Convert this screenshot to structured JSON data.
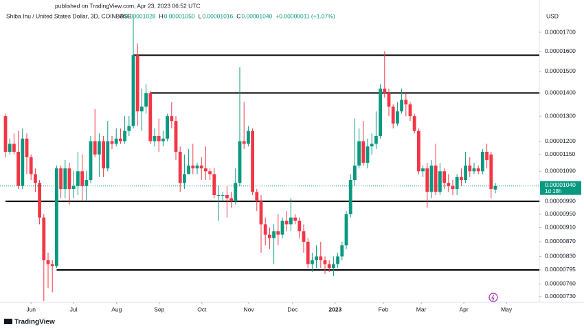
{
  "chart_data": {
    "type": "candlestick",
    "published": "published on TradingView.com, Apr 23, 2023 06:52 UTC",
    "symbol": "Shiba Inu / United States Dollar, 3D, COINBASE",
    "legend": {
      "o": "O",
      "o_value": "0.00001028",
      "h": "H",
      "h_value": "0.00001050",
      "l": "L",
      "l_value": "0.00001016",
      "c": "C",
      "c_value": "0.00001040",
      "change": "+0.00000011 (+1.07%)"
    },
    "currency": "USD",
    "brand": "TradingView",
    "up_color": "#089981",
    "down_color": "#f23645",
    "log_scale": true,
    "ylim": [
      7.17e-06,
      1.844e-05
    ],
    "yticks": [
      {
        "value": 1.7e-05,
        "label": "0.00001700"
      },
      {
        "value": 1.6e-05,
        "label": "0.00001600"
      },
      {
        "value": 1.5e-05,
        "label": "0.00001500"
      },
      {
        "value": 1.4e-05,
        "label": "0.00001400"
      },
      {
        "value": 1.3e-05,
        "label": "0.00001300"
      },
      {
        "value": 1.2e-05,
        "label": "0.00001200"
      },
      {
        "value": 1.15e-05,
        "label": "0.00001150"
      },
      {
        "value": 1.09e-05,
        "label": "0.00001090"
      },
      {
        "value": 9.9e-06,
        "label": "0.00000990"
      },
      {
        "value": 9.5e-06,
        "label": "0.00000950"
      },
      {
        "value": 9.1e-06,
        "label": "0.00000910"
      },
      {
        "value": 8.7e-06,
        "label": "0.00000870"
      },
      {
        "value": 8.3e-06,
        "label": "0.00000830"
      },
      {
        "value": 7.95e-06,
        "label": "0.00000795"
      },
      {
        "value": 7.6e-06,
        "label": "0.00000760"
      },
      {
        "value": 7.3e-06,
        "label": "0.00000730"
      }
    ],
    "xticks": [
      {
        "value": 6,
        "label": "Jun"
      },
      {
        "value": 16,
        "label": "Jul"
      },
      {
        "value": 26.1,
        "label": "Aug"
      },
      {
        "value": 36.1,
        "label": "Sep"
      },
      {
        "value": 46.1,
        "label": "Oct"
      },
      {
        "value": 57.1,
        "label": "Nov"
      },
      {
        "value": 67.4,
        "label": "Dec"
      },
      {
        "value": 77.4,
        "label": "2023"
      },
      {
        "value": 88.7,
        "label": "Feb"
      },
      {
        "value": 97.6,
        "label": "Mar"
      },
      {
        "value": 107.6,
        "label": "Apr"
      },
      {
        "value": 117.6,
        "label": "May"
      }
    ],
    "last_price": {
      "value": 1.04e-05,
      "label": "0.00001040"
    },
    "countdown": "1d 18h",
    "levels": [
      {
        "value": 1.58e-05,
        "from": 30
      },
      {
        "value": 1.4e-05,
        "from": 34
      },
      {
        "value": 9.9e-06,
        "from": 0
      },
      {
        "value": 7.95e-06,
        "from": 12
      }
    ],
    "open": [
      1.3e-05,
      1.16e-05,
      1.19e-05,
      1.16e-05,
      1.04e-05,
      1.21e-05,
      1.14e-05,
      1.08e-05,
      1.05e-05,
      9.4e-06,
      8.2e-06,
      8.1e-06,
      8.05e-06,
      1.1e-05,
      1.03e-05,
      1.1e-05,
      1.03e-05,
      1.04e-05,
      1.09e-05,
      1.04e-05,
      1.06e-05,
      1.2e-05,
      1.15e-05,
      1.2e-05,
      1.1e-05,
      1.2e-05,
      1.19e-05,
      1.21e-05,
      1.2e-05,
      1.24e-05,
      1.26e-05,
      1.58e-05,
      1.32e-05,
      1.34e-05,
      1.4e-05,
      1.2e-05,
      1.22e-05,
      1.2e-05,
      1.21e-05,
      1.3e-05,
      1.28e-05,
      1.16e-05,
      1.05e-05,
      1.08e-05,
      1.11e-05,
      1.1e-05,
      1.11e-05,
      1.1e-05,
      1.09e-05,
      1.08e-05,
      1.01e-05,
      1.01e-05,
      1.01e-05,
      1e-05,
      9.9e-06,
      1.05e-05,
      1.2e-05,
      1.19e-05,
      1.24e-05,
      1.02e-05,
      9.9e-06,
      9.2e-06,
      8.9e-06,
      8.8e-06,
      9e-06,
      8.9e-06,
      9.3e-06,
      9.2e-06,
      9.4e-06,
      9.3e-06,
      9e-06,
      8.7e-06,
      8.1e-06,
      8.2e-06,
      8.3e-06,
      8.2e-06,
      8.1e-06,
      8e-06,
      8.1e-06,
      8.3e-06,
      8.6e-06,
      9.5e-06,
      1.06e-05,
      1.11e-05,
      1.2e-05,
      1.12e-05,
      1.18e-05,
      1.19e-05,
      1.22e-05,
      1.42e-05,
      1.4e-05,
      1.34e-05,
      1.27e-05,
      1.32e-05,
      1.37e-05,
      1.35e-05,
      1.3e-05,
      1.24e-05,
      1.09e-05,
      1.1e-05,
      1.02e-05,
      1.11e-05,
      1.02e-05,
      1.09e-05,
      1.05e-05,
      1.04e-05,
      1.03e-05,
      1.07e-05,
      1.06e-05,
      1.11e-05,
      1.09e-05,
      1.1e-05,
      1.09e-05,
      1.16e-05,
      1.15e-05,
      1.028e-05
    ],
    "high": [
      1.31e-05,
      1.21e-05,
      1.23e-05,
      1.24e-05,
      1.25e-05,
      1.23e-05,
      1.15e-05,
      1.1e-05,
      1.06e-05,
      9.5e-06,
      8.4e-06,
      8.2e-06,
      1.11e-05,
      1.11e-05,
      1.13e-05,
      1.12e-05,
      1.09e-05,
      1.16e-05,
      1.15e-05,
      1.09e-05,
      1.22e-05,
      1.33e-05,
      1.23e-05,
      1.22e-05,
      1.28e-05,
      1.22e-05,
      1.25e-05,
      1.25e-05,
      1.3e-05,
      1.3e-05,
      1.78e-05,
      1.64e-05,
      1.42e-05,
      1.44e-05,
      1.41e-05,
      1.25e-05,
      1.29e-05,
      1.24e-05,
      1.31e-05,
      1.36e-05,
      1.3e-05,
      1.18e-05,
      1.15e-05,
      1.17e-05,
      1.19e-05,
      1.12e-05,
      1.14e-05,
      1.18e-05,
      1.1e-05,
      1.1e-05,
      1.04e-05,
      1.02e-05,
      1.04e-05,
      1.02e-05,
      1.1e-05,
      1.52e-05,
      1.36e-05,
      1.26e-05,
      1.25e-05,
      1.03e-05,
      1.01e-05,
      9.4e-06,
      9.1e-06,
      9.2e-06,
      9.5e-06,
      9.4e-06,
      9.6e-06,
      1e-05,
      9.5e-06,
      9.4e-06,
      9.2e-06,
      8.8e-06,
      8.4e-06,
      8.6e-06,
      8.7e-06,
      8.3e-06,
      8.2e-06,
      8.3e-06,
      8.4e-06,
      8.7e-06,
      9.6e-06,
      1.08e-05,
      1.29e-05,
      1.25e-05,
      1.28e-05,
      1.21e-05,
      1.23e-05,
      1.32e-05,
      1.44e-05,
      1.6e-05,
      1.42e-05,
      1.35e-05,
      1.36e-05,
      1.42e-05,
      1.4e-05,
      1.36e-05,
      1.31e-05,
      1.25e-05,
      1.11e-05,
      1.12e-05,
      1.13e-05,
      1.19e-05,
      1.12e-05,
      1.1e-05,
      1.08e-05,
      1.06e-05,
      1.08e-05,
      1.1e-05,
      1.16e-05,
      1.14e-05,
      1.12e-05,
      1.11e-05,
      1.17e-05,
      1.19e-05,
      1.16e-05,
      1.05e-05
    ],
    "low": [
      1.14e-05,
      1.15e-05,
      1.15e-05,
      1.03e-05,
      1.03e-05,
      1.08e-05,
      1.06e-05,
      1.02e-05,
      9.2e-06,
      7.2e-06,
      7.5e-06,
      7.4e-06,
      8e-06,
      1e-05,
      1e-05,
      9.8e-06,
      1e-05,
      1.01e-05,
      9.9e-06,
      9.9e-06,
      1.05e-05,
      1.14e-05,
      1.07e-05,
      1.07e-05,
      1.09e-05,
      1.17e-05,
      1.18e-05,
      1.19e-05,
      1.19e-05,
      1.22e-05,
      1.25e-05,
      1.26e-05,
      1.24e-05,
      1.31e-05,
      1.19e-05,
      1.18e-05,
      1.16e-05,
      1.18e-05,
      1.2e-05,
      1.25e-05,
      1.13e-05,
      1.02e-05,
      1.03e-05,
      1.08e-05,
      1.08e-05,
      1.08e-05,
      1.06e-05,
      1.06e-05,
      1.06e-05,
      1e-05,
      9.3e-06,
      9.9e-06,
      9.4e-06,
      9.7e-06,
      9.8e-06,
      1.04e-05,
      1.17e-05,
      1.18e-05,
      1.01e-05,
      9.6e-06,
      8.4e-06,
      8.6e-06,
      8.5e-06,
      8.1e-06,
      8.6e-06,
      8.8e-06,
      9e-06,
      9e-06,
      9.2e-06,
      8.8e-06,
      8.4e-06,
      8e-06,
      7.9e-06,
      8e-06,
      8e-06,
      7.85e-06,
      7.9e-06,
      7.8e-06,
      8e-06,
      8.2e-06,
      8.5e-06,
      9.4e-06,
      1.04e-05,
      1.1e-05,
      1.11e-05,
      1.1e-05,
      1.15e-05,
      1.17e-05,
      1.21e-05,
      1.38e-05,
      1.3e-05,
      1.25e-05,
      1.26e-05,
      1.31e-05,
      1.3e-05,
      1.28e-05,
      1.23e-05,
      1.08e-05,
      1.07e-05,
      9.7e-06,
      1e-05,
      1.01e-05,
      1.01e-05,
      1.03e-05,
      1.02e-05,
      1.01e-05,
      1.01e-05,
      1.04e-05,
      1.05e-05,
      1.07e-05,
      1.08e-05,
      1.08e-05,
      1.08e-05,
      1.1e-05,
      1e-05,
      1.016e-05
    ],
    "close": [
      1.16e-05,
      1.19e-05,
      1.16e-05,
      1.04e-05,
      1.21e-05,
      1.14e-05,
      1.08e-05,
      1.05e-05,
      9.4e-06,
      8.2e-06,
      8.1e-06,
      8.05e-06,
      1.1e-05,
      1.03e-05,
      1.1e-05,
      1.03e-05,
      1.04e-05,
      1.09e-05,
      1.04e-05,
      1.06e-05,
      1.2e-05,
      1.15e-05,
      1.2e-05,
      1.1e-05,
      1.2e-05,
      1.19e-05,
      1.21e-05,
      1.2e-05,
      1.24e-05,
      1.26e-05,
      1.58e-05,
      1.32e-05,
      1.34e-05,
      1.4e-05,
      1.2e-05,
      1.22e-05,
      1.2e-05,
      1.21e-05,
      1.3e-05,
      1.28e-05,
      1.16e-05,
      1.05e-05,
      1.08e-05,
      1.11e-05,
      1.1e-05,
      1.11e-05,
      1.1e-05,
      1.09e-05,
      1.08e-05,
      1.01e-05,
      1.01e-05,
      1.01e-05,
      1e-05,
      9.9e-06,
      1.05e-05,
      1.2e-05,
      1.19e-05,
      1.24e-05,
      1.02e-05,
      9.9e-06,
      9.2e-06,
      8.9e-06,
      8.8e-06,
      9e-06,
      8.9e-06,
      9.3e-06,
      9.2e-06,
      9.4e-06,
      9.3e-06,
      9e-06,
      8.7e-06,
      8.1e-06,
      8.2e-06,
      8.3e-06,
      8.2e-06,
      8.1e-06,
      8e-06,
      8.1e-06,
      8.3e-06,
      8.6e-06,
      9.5e-06,
      1.06e-05,
      1.11e-05,
      1.2e-05,
      1.12e-05,
      1.18e-05,
      1.19e-05,
      1.22e-05,
      1.42e-05,
      1.4e-05,
      1.34e-05,
      1.27e-05,
      1.32e-05,
      1.37e-05,
      1.35e-05,
      1.3e-05,
      1.24e-05,
      1.09e-05,
      1.1e-05,
      1.02e-05,
      1.11e-05,
      1.02e-05,
      1.09e-05,
      1.05e-05,
      1.04e-05,
      1.03e-05,
      1.07e-05,
      1.06e-05,
      1.11e-05,
      1.09e-05,
      1.1e-05,
      1.09e-05,
      1.16e-05,
      1.13e-05,
      1.03e-05,
      1.04e-05
    ]
  }
}
